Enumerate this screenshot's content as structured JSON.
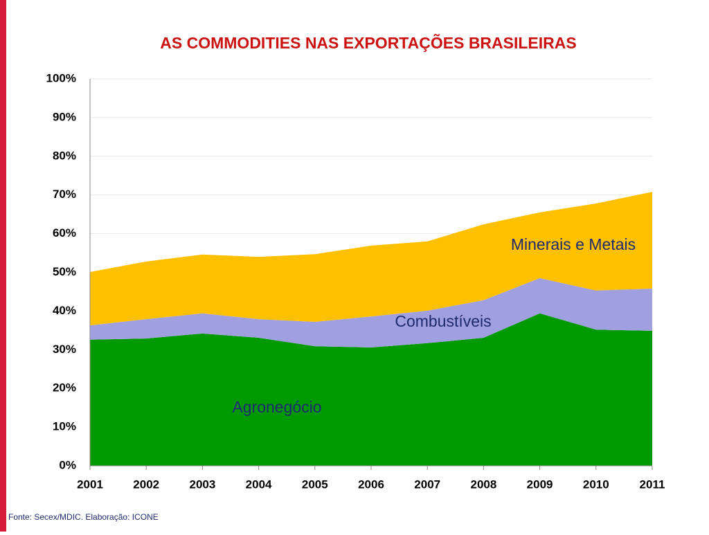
{
  "chart_data": {
    "type": "stacked_area",
    "title": "AS COMMODITIES NAS EXPORTAÇÕES BRASILEIRAS",
    "source": "Fonte: Secex/MDIC. Elaboração: ICONE",
    "x": [
      2001,
      2002,
      2003,
      2004,
      2005,
      2006,
      2007,
      2008,
      2009,
      2010,
      2011
    ],
    "xlim": [
      2001,
      2011
    ],
    "xticks": [
      2001,
      2002,
      2003,
      2004,
      2005,
      2006,
      2007,
      2008,
      2009,
      2010,
      2011
    ],
    "ylim": [
      0,
      100
    ],
    "yticks": [
      {
        "value": 0,
        "label": "0%"
      },
      {
        "value": 10,
        "label": "10%"
      },
      {
        "value": 20,
        "label": "20%"
      },
      {
        "value": 30,
        "label": "30%"
      },
      {
        "value": 40,
        "label": "40%"
      },
      {
        "value": 50,
        "label": "50%"
      },
      {
        "value": 60,
        "label": "60%"
      },
      {
        "value": 70,
        "label": "70%"
      },
      {
        "value": 80,
        "label": "80%"
      },
      {
        "value": 90,
        "label": "90%"
      },
      {
        "value": 100,
        "label": "100%"
      }
    ],
    "grid": true,
    "series": [
      {
        "name": "Agronegócio",
        "color": "#009900",
        "values": [
          32.6,
          32.9,
          34.2,
          33.1,
          30.9,
          30.6,
          31.7,
          33.1,
          39.4,
          35.2,
          34.9
        ]
      },
      {
        "name": "Combustíveis",
        "color": "#a09fe0",
        "values": [
          3.7,
          5.0,
          5.2,
          4.8,
          6.3,
          8.0,
          8.4,
          9.7,
          9.1,
          10.1,
          10.9
        ]
      },
      {
        "name": "Minerais e Metais",
        "color": "#ffc000",
        "values": [
          13.8,
          14.9,
          15.2,
          16.1,
          17.5,
          18.3,
          17.9,
          19.6,
          17.0,
          22.5,
          25.0
        ]
      }
    ]
  }
}
